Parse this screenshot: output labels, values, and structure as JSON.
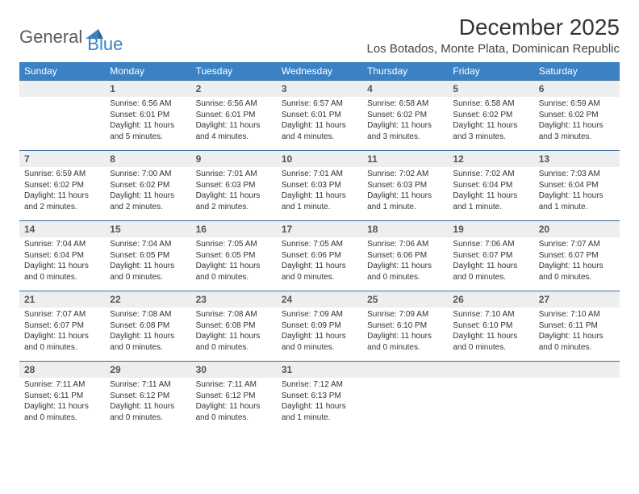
{
  "logo": {
    "text1": "General",
    "text2": "Blue"
  },
  "title": "December 2025",
  "subtitle": "Los Botados, Monte Plata, Dominican Republic",
  "colors": {
    "header_bg": "#3b82c4",
    "header_text": "#ffffff",
    "daynum_bg": "#eceeef",
    "daynum_border": "#3b6fa0",
    "text": "#333333",
    "logo_gray": "#5a5a5a",
    "logo_blue": "#3b82c4"
  },
  "weekdays": [
    "Sunday",
    "Monday",
    "Tuesday",
    "Wednesday",
    "Thursday",
    "Friday",
    "Saturday"
  ],
  "weeks": [
    [
      null,
      {
        "n": "1",
        "sr": "6:56 AM",
        "ss": "6:01 PM",
        "dl": "11 hours and 5 minutes."
      },
      {
        "n": "2",
        "sr": "6:56 AM",
        "ss": "6:01 PM",
        "dl": "11 hours and 4 minutes."
      },
      {
        "n": "3",
        "sr": "6:57 AM",
        "ss": "6:01 PM",
        "dl": "11 hours and 4 minutes."
      },
      {
        "n": "4",
        "sr": "6:58 AM",
        "ss": "6:02 PM",
        "dl": "11 hours and 3 minutes."
      },
      {
        "n": "5",
        "sr": "6:58 AM",
        "ss": "6:02 PM",
        "dl": "11 hours and 3 minutes."
      },
      {
        "n": "6",
        "sr": "6:59 AM",
        "ss": "6:02 PM",
        "dl": "11 hours and 3 minutes."
      }
    ],
    [
      {
        "n": "7",
        "sr": "6:59 AM",
        "ss": "6:02 PM",
        "dl": "11 hours and 2 minutes."
      },
      {
        "n": "8",
        "sr": "7:00 AM",
        "ss": "6:02 PM",
        "dl": "11 hours and 2 minutes."
      },
      {
        "n": "9",
        "sr": "7:01 AM",
        "ss": "6:03 PM",
        "dl": "11 hours and 2 minutes."
      },
      {
        "n": "10",
        "sr": "7:01 AM",
        "ss": "6:03 PM",
        "dl": "11 hours and 1 minute."
      },
      {
        "n": "11",
        "sr": "7:02 AM",
        "ss": "6:03 PM",
        "dl": "11 hours and 1 minute."
      },
      {
        "n": "12",
        "sr": "7:02 AM",
        "ss": "6:04 PM",
        "dl": "11 hours and 1 minute."
      },
      {
        "n": "13",
        "sr": "7:03 AM",
        "ss": "6:04 PM",
        "dl": "11 hours and 1 minute."
      }
    ],
    [
      {
        "n": "14",
        "sr": "7:04 AM",
        "ss": "6:04 PM",
        "dl": "11 hours and 0 minutes."
      },
      {
        "n": "15",
        "sr": "7:04 AM",
        "ss": "6:05 PM",
        "dl": "11 hours and 0 minutes."
      },
      {
        "n": "16",
        "sr": "7:05 AM",
        "ss": "6:05 PM",
        "dl": "11 hours and 0 minutes."
      },
      {
        "n": "17",
        "sr": "7:05 AM",
        "ss": "6:06 PM",
        "dl": "11 hours and 0 minutes."
      },
      {
        "n": "18",
        "sr": "7:06 AM",
        "ss": "6:06 PM",
        "dl": "11 hours and 0 minutes."
      },
      {
        "n": "19",
        "sr": "7:06 AM",
        "ss": "6:07 PM",
        "dl": "11 hours and 0 minutes."
      },
      {
        "n": "20",
        "sr": "7:07 AM",
        "ss": "6:07 PM",
        "dl": "11 hours and 0 minutes."
      }
    ],
    [
      {
        "n": "21",
        "sr": "7:07 AM",
        "ss": "6:07 PM",
        "dl": "11 hours and 0 minutes."
      },
      {
        "n": "22",
        "sr": "7:08 AM",
        "ss": "6:08 PM",
        "dl": "11 hours and 0 minutes."
      },
      {
        "n": "23",
        "sr": "7:08 AM",
        "ss": "6:08 PM",
        "dl": "11 hours and 0 minutes."
      },
      {
        "n": "24",
        "sr": "7:09 AM",
        "ss": "6:09 PM",
        "dl": "11 hours and 0 minutes."
      },
      {
        "n": "25",
        "sr": "7:09 AM",
        "ss": "6:10 PM",
        "dl": "11 hours and 0 minutes."
      },
      {
        "n": "26",
        "sr": "7:10 AM",
        "ss": "6:10 PM",
        "dl": "11 hours and 0 minutes."
      },
      {
        "n": "27",
        "sr": "7:10 AM",
        "ss": "6:11 PM",
        "dl": "11 hours and 0 minutes."
      }
    ],
    [
      {
        "n": "28",
        "sr": "7:11 AM",
        "ss": "6:11 PM",
        "dl": "11 hours and 0 minutes."
      },
      {
        "n": "29",
        "sr": "7:11 AM",
        "ss": "6:12 PM",
        "dl": "11 hours and 0 minutes."
      },
      {
        "n": "30",
        "sr": "7:11 AM",
        "ss": "6:12 PM",
        "dl": "11 hours and 0 minutes."
      },
      {
        "n": "31",
        "sr": "7:12 AM",
        "ss": "6:13 PM",
        "dl": "11 hours and 1 minute."
      },
      null,
      null,
      null
    ]
  ],
  "labels": {
    "sunrise": "Sunrise:",
    "sunset": "Sunset:",
    "daylight": "Daylight:"
  }
}
